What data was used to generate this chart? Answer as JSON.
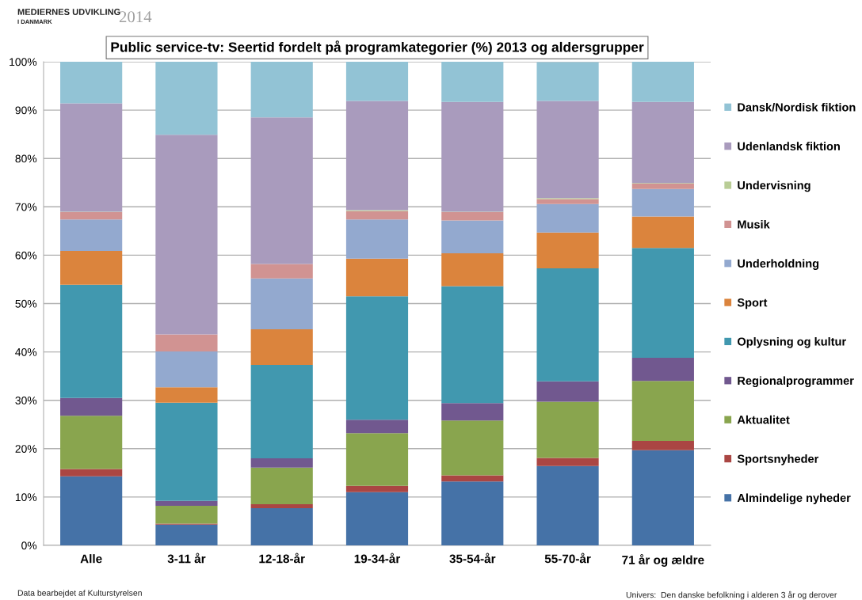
{
  "chart_data": {
    "type": "bar",
    "stacked": true,
    "title": "Public service-tv: Seertid fordelt på programkategorier (%) 2013 og aldersgrupper",
    "annotations": [
      "MEDIERNES UDVIKLING",
      "I DANMARK",
      "2014",
      "Data bearbejdet af Kulturstyrelsen",
      "Univers:  Den danske befolkning i alderen 3 år og derover"
    ],
    "categories": [
      "Alle",
      "3-11 år",
      "12-18-år",
      "19-34-år",
      "35-54-år",
      "55-70-år",
      "71 år og ældre"
    ],
    "series": [
      {
        "name": "Almindelige nyheder",
        "color": "#4572a7",
        "values": [
          14.3,
          4.3,
          7.7,
          11.0,
          13.2,
          16.4,
          19.7
        ]
      },
      {
        "name": "Sportsnyheder",
        "color": "#aa4643",
        "values": [
          1.5,
          0.2,
          0.8,
          1.3,
          1.3,
          1.7,
          1.9
        ]
      },
      {
        "name": "Aktualitet",
        "color": "#89a54e",
        "values": [
          11.0,
          3.7,
          7.6,
          10.9,
          11.3,
          11.6,
          12.4
        ]
      },
      {
        "name": "Regionalprogrammer",
        "color": "#71588f",
        "values": [
          3.7,
          1.0,
          1.9,
          2.8,
          3.6,
          4.2,
          4.8
        ]
      },
      {
        "name": "Oplysning og kultur",
        "color": "#4198af",
        "values": [
          23.4,
          20.3,
          19.3,
          25.5,
          24.2,
          23.4,
          22.7
        ]
      },
      {
        "name": "Sport",
        "color": "#db843d",
        "values": [
          7.0,
          3.2,
          7.4,
          7.8,
          6.8,
          7.4,
          6.5
        ]
      },
      {
        "name": "Underholdning",
        "color": "#93a9cf",
        "values": [
          6.5,
          7.4,
          10.5,
          8.1,
          6.8,
          5.9,
          5.7
        ]
      },
      {
        "name": "Musik",
        "color": "#d19392",
        "values": [
          1.5,
          3.5,
          3.0,
          1.7,
          1.7,
          1.0,
          1.1
        ]
      },
      {
        "name": "Undervisning",
        "color": "#b9cd96",
        "values": [
          0.1,
          0.0,
          0.0,
          0.2,
          0.1,
          0.2,
          0.1
        ]
      },
      {
        "name": "Udenlandsk fiktion",
        "color": "#a99bbd",
        "values": [
          22.4,
          41.3,
          30.3,
          22.6,
          22.7,
          20.1,
          16.8
        ]
      },
      {
        "name": "Dansk/Nordisk fiktion",
        "color": "#92c3d5",
        "values": [
          8.6,
          15.1,
          11.5,
          8.1,
          8.4,
          8.0,
          8.4
        ]
      }
    ],
    "ylim": [
      0,
      100
    ],
    "yticks": [
      {
        "value": 0,
        "label": "0%"
      },
      {
        "value": 10,
        "label": "10%"
      },
      {
        "value": 20,
        "label": "20%"
      },
      {
        "value": 30,
        "label": "30%"
      },
      {
        "value": 40,
        "label": "40%"
      },
      {
        "value": 50,
        "label": "50%"
      },
      {
        "value": 60,
        "label": "60%"
      },
      {
        "value": 70,
        "label": "70%"
      },
      {
        "value": 80,
        "label": "80%"
      },
      {
        "value": 90,
        "label": "90%"
      },
      {
        "value": 100,
        "label": "100%"
      }
    ],
    "grid": "y",
    "legend": "right"
  }
}
